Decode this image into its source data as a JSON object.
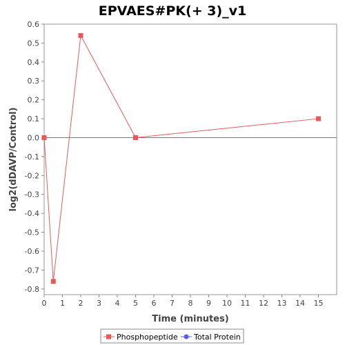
{
  "chart_data": {
    "type": "line",
    "title": "EPVAES#PK(+ 3)_v1",
    "xlabel": "Time (minutes)",
    "ylabel": "log2(dDAVP/Control)",
    "xlim": [
      0,
      16
    ],
    "ylim": [
      -0.83,
      0.6
    ],
    "x_ticks": [
      0,
      1,
      2,
      3,
      4,
      5,
      6,
      7,
      8,
      9,
      10,
      11,
      12,
      13,
      14,
      15
    ],
    "y_ticks": [
      0.6,
      0.5,
      0.4,
      0.3,
      0.2,
      0.1,
      0.0,
      -0.1,
      -0.2,
      -0.3,
      -0.4,
      -0.5,
      -0.6,
      -0.7,
      -0.8
    ],
    "y_tick_labels": [
      "0.6",
      "0.5",
      "0.4",
      "0.3",
      "0.2",
      "0.1",
      "0.0",
      "-0.1",
      "-0.2",
      "-0.3",
      "-0.4",
      "-0.5",
      "-0.6",
      "-0.7",
      "-0.8"
    ],
    "zero_line": 0,
    "grid": false,
    "legend_position": "bottom",
    "series": [
      {
        "name": "Phosphopeptide",
        "color": "#e8585a",
        "marker": "square",
        "points": [
          {
            "x": 0,
            "y": 0.0
          },
          {
            "x": 0.5,
            "y": -0.76
          },
          {
            "x": 2,
            "y": 0.54
          },
          {
            "x": 5,
            "y": 0.0
          },
          {
            "x": 15,
            "y": 0.1
          }
        ]
      },
      {
        "name": "Total Protein",
        "color": "#5a5aee",
        "marker": "circle",
        "points": []
      }
    ]
  }
}
